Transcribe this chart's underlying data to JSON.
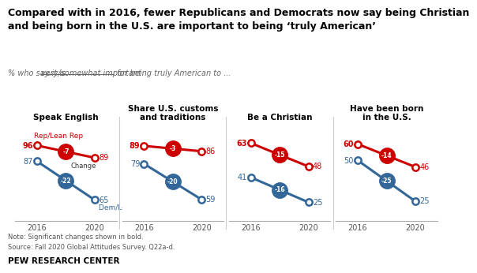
{
  "title_line1": "Compared with in 2016, fewer Republicans and Democrats now say being Christian",
  "title_line2": "and being born in the U.S. are important to being ‘truly American’",
  "subtitle_pre": "% who say it is ",
  "subtitle_underline": "very/somewhat important",
  "subtitle_post": " for being truly American to ...",
  "panels": [
    {
      "title": "Speak English",
      "rep_2016": 96,
      "rep_2020": 89,
      "dem_2016": 87,
      "dem_2020": 65,
      "rep_change": -7,
      "dem_change": -22
    },
    {
      "title": "Share U.S. customs\nand traditions",
      "rep_2016": 89,
      "rep_2020": 86,
      "dem_2016": 79,
      "dem_2020": 59,
      "rep_change": -3,
      "dem_change": -20
    },
    {
      "title": "Be a Christian",
      "rep_2016": 63,
      "rep_2020": 48,
      "dem_2016": 41,
      "dem_2020": 25,
      "rep_change": -15,
      "dem_change": -16
    },
    {
      "title": "Have been born\nin the U.S.",
      "rep_2016": 60,
      "rep_2020": 46,
      "dem_2016": 50,
      "dem_2020": 25,
      "rep_change": -14,
      "dem_change": -25
    }
  ],
  "rep_color": "#cc0000",
  "dem_color": "#336699",
  "rep_label": "Rep/Lean Rep",
  "dem_label": "Dem/Lean Dem",
  "change_label": "Change",
  "note": "Note: Significant changes shown in bold.",
  "source": "Source: Fall 2020 Global Attitudes Survey. Q22a-d.",
  "footer": "PEW RESEARCH CENTER",
  "x_ticks": [
    "2016",
    "2020"
  ],
  "bg_color": "#ffffff",
  "line_width": 2.2,
  "marker_size": 6,
  "bubble_size": 14
}
